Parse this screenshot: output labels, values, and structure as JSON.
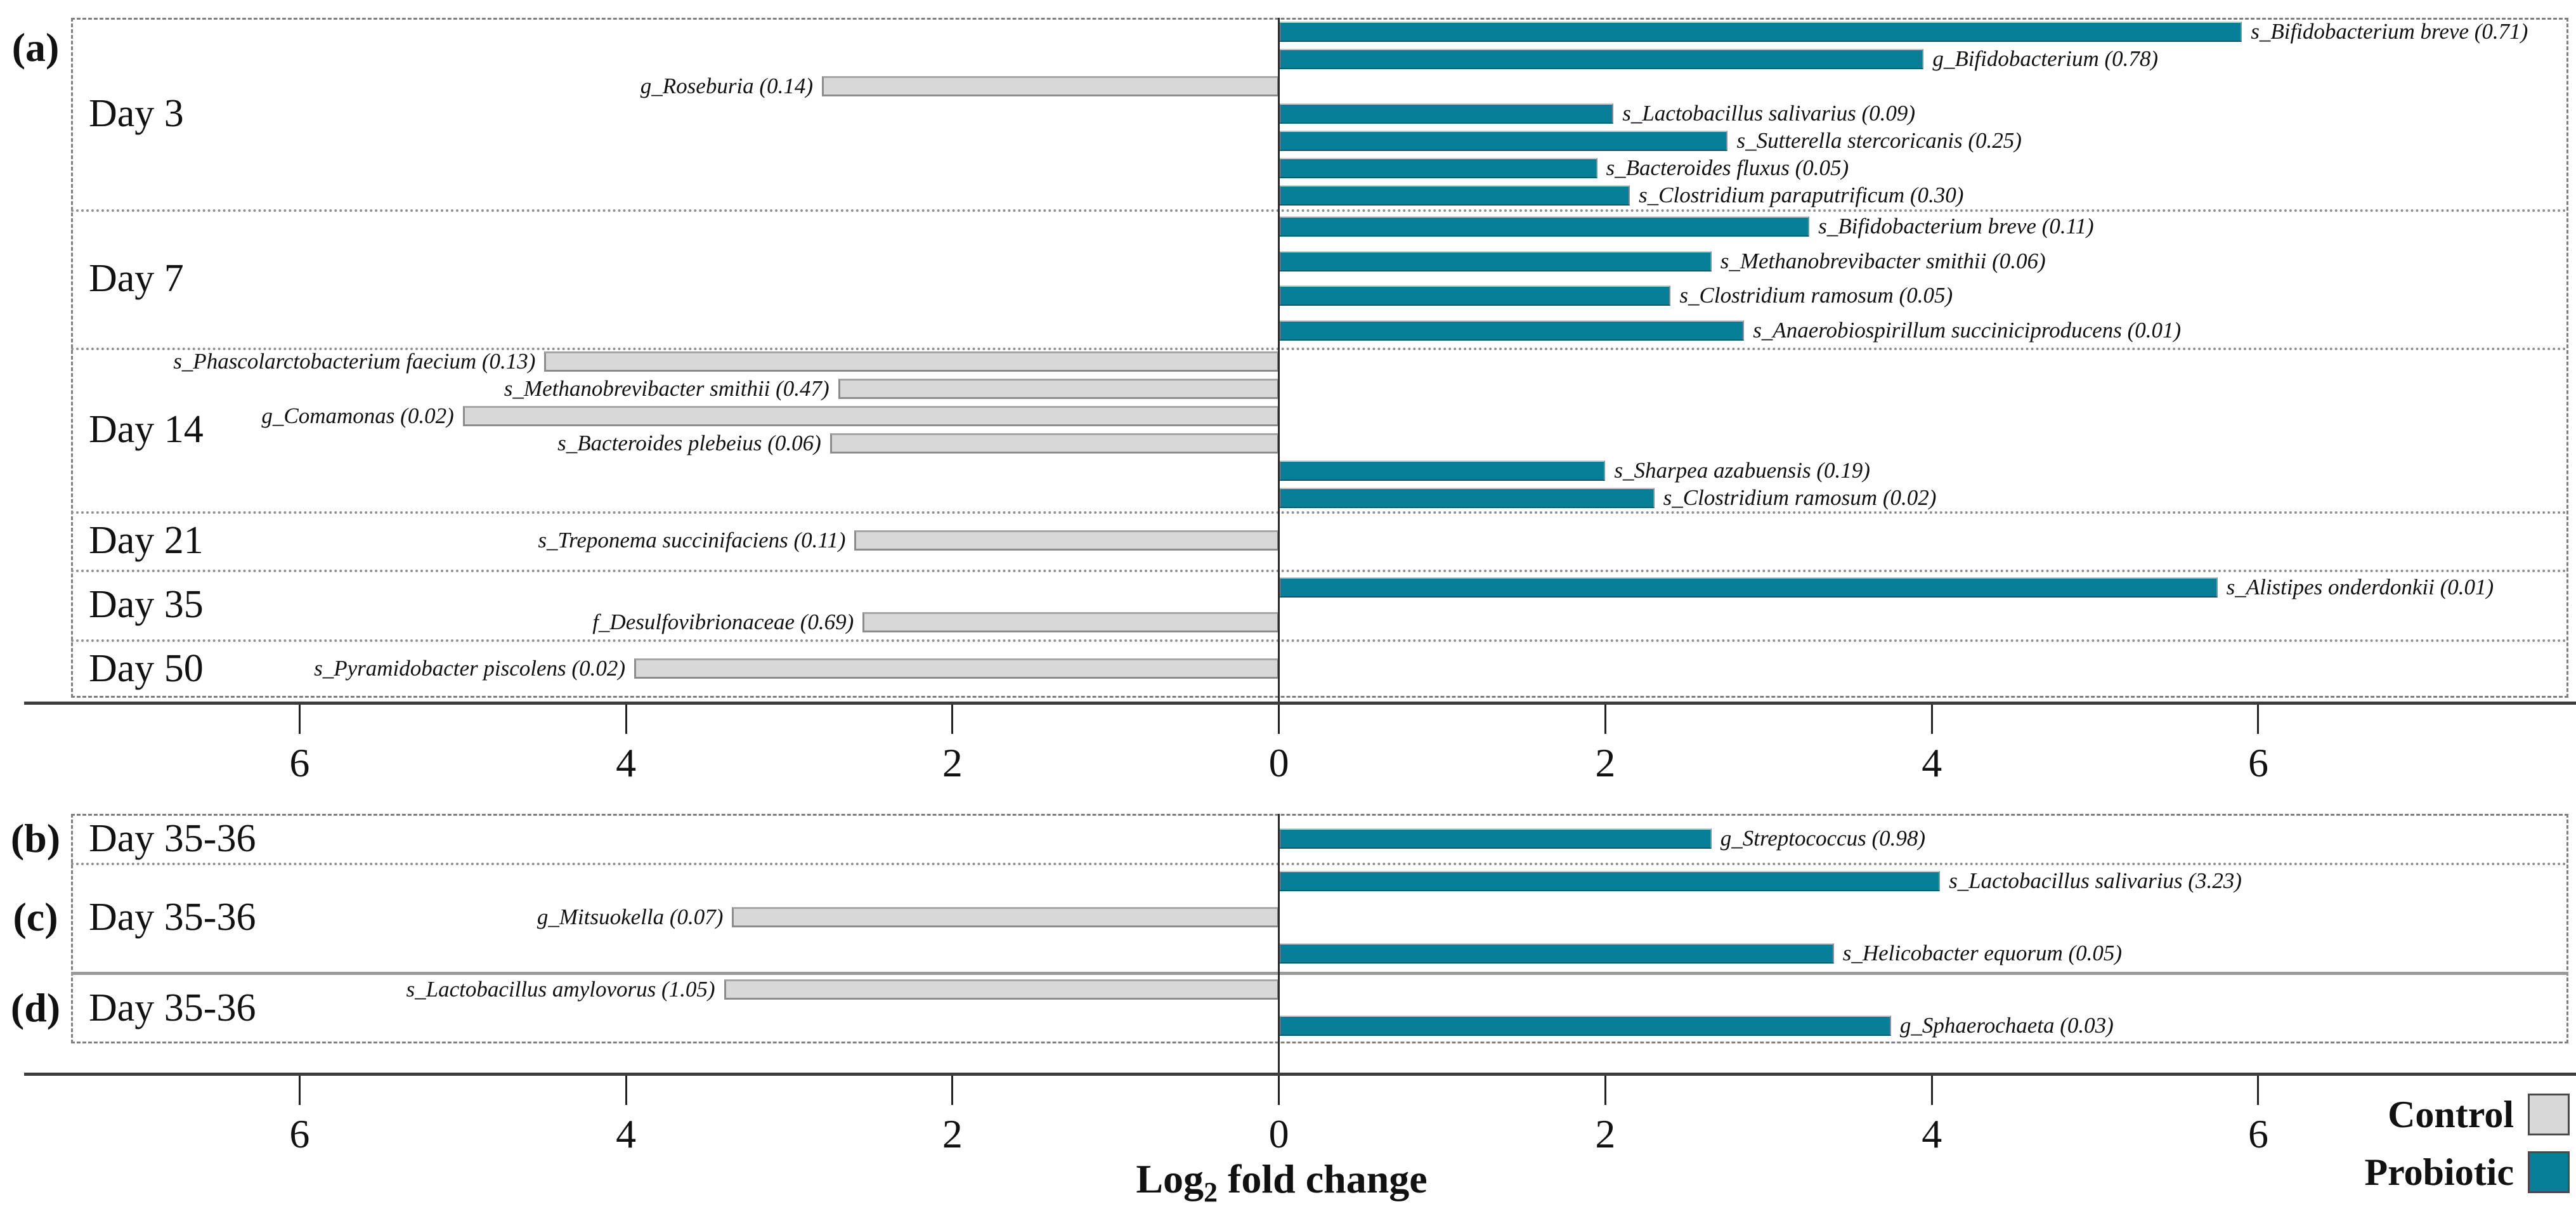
{
  "figure": {
    "xlabel": {
      "prefix": "Log",
      "sub": "2",
      "suffix": " fold change"
    }
  },
  "axis": {
    "xlim": [
      -7.4,
      7.9
    ],
    "ticks": [
      -6,
      -4,
      -2,
      0,
      2,
      4,
      6
    ],
    "tick_labels": [
      "6",
      "4",
      "2",
      "0",
      "2",
      "4",
      "6"
    ]
  },
  "legend": [
    {
      "label": "Control",
      "series": "Control",
      "color": "#d8d8d8"
    },
    {
      "label": "Probiotic",
      "series": "Probiotic",
      "color": "#087f99"
    }
  ],
  "chart_data": {
    "type": "bar",
    "orientation": "horizontal",
    "xlabel": "Log2 fold change",
    "xlim": [
      -7.4,
      7.9
    ],
    "ticks": [
      -6,
      -4,
      -2,
      0,
      2,
      4,
      6
    ],
    "grid": false,
    "zero_line": true,
    "legend_position": "bottom-right",
    "series_colors": {
      "Control": "#d8d8d8",
      "Probiotic": "#087f99"
    },
    "panels": [
      {
        "id": "a",
        "label": "(a)",
        "sections": [
          {
            "group": "Day 3",
            "bars": [
              {
                "taxon": "s_Bifidobacterium breve",
                "sig": "0.71",
                "series": "Probiotic",
                "value": 5.9
              },
              {
                "taxon": "g_Bifidobacterium",
                "sig": "0.78",
                "series": "Probiotic",
                "value": 3.95
              },
              {
                "taxon": "g_Roseburia",
                "sig": "0.14",
                "series": "Control",
                "value": -2.8
              },
              {
                "taxon": "s_Lactobacillus salivarius",
                "sig": "0.09",
                "series": "Probiotic",
                "value": 2.05
              },
              {
                "taxon": "s_Sutterella stercoricanis",
                "sig": "0.25",
                "series": "Probiotic",
                "value": 2.75
              },
              {
                "taxon": "s_Bacteroides fluxus",
                "sig": "0.05",
                "series": "Probiotic",
                "value": 1.95
              },
              {
                "taxon": "s_Clostridium paraputrificum",
                "sig": "0.30",
                "series": "Probiotic",
                "value": 2.15
              }
            ]
          },
          {
            "group": "Day 7",
            "bars": [
              {
                "taxon": "s_Bifidobacterium breve",
                "sig": "0.11",
                "series": "Probiotic",
                "value": 3.25
              },
              {
                "taxon": "s_Methanobrevibacter smithii",
                "sig": "0.06",
                "series": "Probiotic",
                "value": 2.65
              },
              {
                "taxon": "s_Clostridium ramosum",
                "sig": "0.05",
                "series": "Probiotic",
                "value": 2.4
              },
              {
                "taxon": "s_Anaerobiospirillum succiniciproducens",
                "sig": "0.01",
                "series": "Probiotic",
                "value": 2.85
              }
            ]
          },
          {
            "group": "Day 14",
            "bars": [
              {
                "taxon": "s_Phascolarctobacterium faecium",
                "sig": "0.13",
                "series": "Control",
                "value": -4.5
              },
              {
                "taxon": "s_Methanobrevibacter smithii",
                "sig": "0.47",
                "series": "Control",
                "value": -2.7
              },
              {
                "taxon": "g_Comamonas",
                "sig": "0.02",
                "series": "Control",
                "value": -5.0
              },
              {
                "taxon": "s_Bacteroides plebeius",
                "sig": "0.06",
                "series": "Control",
                "value": -2.75
              },
              {
                "taxon": "s_Sharpea azabuensis",
                "sig": "0.19",
                "series": "Probiotic",
                "value": 2.0
              },
              {
                "taxon": "s_Clostridium ramosum",
                "sig": "0.02",
                "series": "Probiotic",
                "value": 2.3
              }
            ]
          },
          {
            "group": "Day 21",
            "bars": [
              {
                "taxon": "s_Treponema succinifaciens",
                "sig": "0.11",
                "series": "Control",
                "value": -2.6
              }
            ]
          },
          {
            "group": "Day 35",
            "bars": [
              {
                "taxon": "s_Alistipes onderdonkii",
                "sig": "0.01",
                "series": "Probiotic",
                "value": 5.75
              },
              {
                "taxon": "f_Desulfovibrionaceae",
                "sig": "0.69",
                "series": "Control",
                "value": -2.55
              }
            ]
          },
          {
            "group": "Day 50",
            "bars": [
              {
                "taxon": "s_Pyramidobacter piscolens",
                "sig": "0.02",
                "series": "Control",
                "value": -3.95
              }
            ]
          }
        ]
      },
      {
        "id": "b",
        "label": "(b)",
        "sections": [
          {
            "group": "Day 35-36",
            "bars": [
              {
                "taxon": "g_Streptococcus",
                "sig": "0.98",
                "series": "Probiotic",
                "value": 2.65
              }
            ]
          }
        ]
      },
      {
        "id": "c",
        "label": "(c)",
        "sections": [
          {
            "group": "Day 35-36",
            "bars": [
              {
                "taxon": "s_Lactobacillus salivarius",
                "sig": "3.23",
                "series": "Probiotic",
                "value": 4.05
              },
              {
                "taxon": "g_Mitsuokella",
                "sig": "0.07",
                "series": "Control",
                "value": -3.35
              },
              {
                "taxon": "s_Helicobacter equorum",
                "sig": "0.05",
                "series": "Probiotic",
                "value": 3.4
              }
            ]
          }
        ]
      },
      {
        "id": "d",
        "label": "(d)",
        "sections": [
          {
            "group": "Day 35-36",
            "bars": [
              {
                "taxon": "s_Lactobacillus amylovorus",
                "sig": "1.05",
                "series": "Control",
                "value": -3.4
              },
              {
                "taxon": "g_Sphaerochaeta",
                "sig": "0.03",
                "series": "Probiotic",
                "value": 3.75
              }
            ]
          }
        ]
      }
    ]
  }
}
